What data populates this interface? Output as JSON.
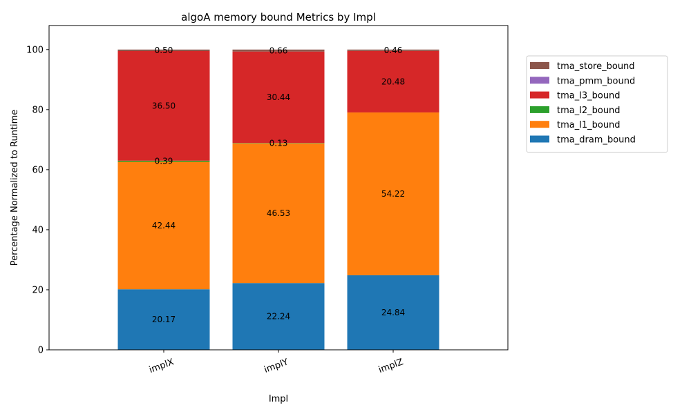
{
  "chart_data": {
    "type": "bar",
    "stacked": true,
    "title": "algoA memory bound Metrics by Impl",
    "xlabel": "Impl",
    "ylabel": "Percentage Normalized to Runtime",
    "ylim": [
      0,
      108
    ],
    "yticks": [
      0,
      20,
      40,
      60,
      80,
      100
    ],
    "categories": [
      "implX",
      "implY",
      "implZ"
    ],
    "legend_position": "right",
    "series": [
      {
        "name": "tma_dram_bound",
        "color": "#1f77b4",
        "values": [
          20.17,
          22.24,
          24.84
        ],
        "labels": [
          "20.17",
          "22.24",
          "24.84"
        ]
      },
      {
        "name": "tma_l1_bound",
        "color": "#ff7f0e",
        "values": [
          42.44,
          46.53,
          54.22
        ],
        "labels": [
          "42.44",
          "46.53",
          "54.22"
        ]
      },
      {
        "name": "tma_l2_bound",
        "color": "#2ca02c",
        "values": [
          0.39,
          0.13,
          0.0
        ],
        "labels": [
          "0.39",
          "0.13",
          ""
        ]
      },
      {
        "name": "tma_l3_bound",
        "color": "#d62728",
        "values": [
          36.5,
          30.44,
          20.48
        ],
        "labels": [
          "36.50",
          "30.44",
          "20.48"
        ]
      },
      {
        "name": "tma_pmm_bound",
        "color": "#9467bd",
        "values": [
          0.0,
          0.0,
          0.0
        ],
        "labels": [
          "",
          "",
          ""
        ]
      },
      {
        "name": "tma_store_bound",
        "color": "#8c564b",
        "values": [
          0.5,
          0.66,
          0.46
        ],
        "labels": [
          "0.50",
          "0.66",
          "0.46"
        ]
      }
    ]
  }
}
